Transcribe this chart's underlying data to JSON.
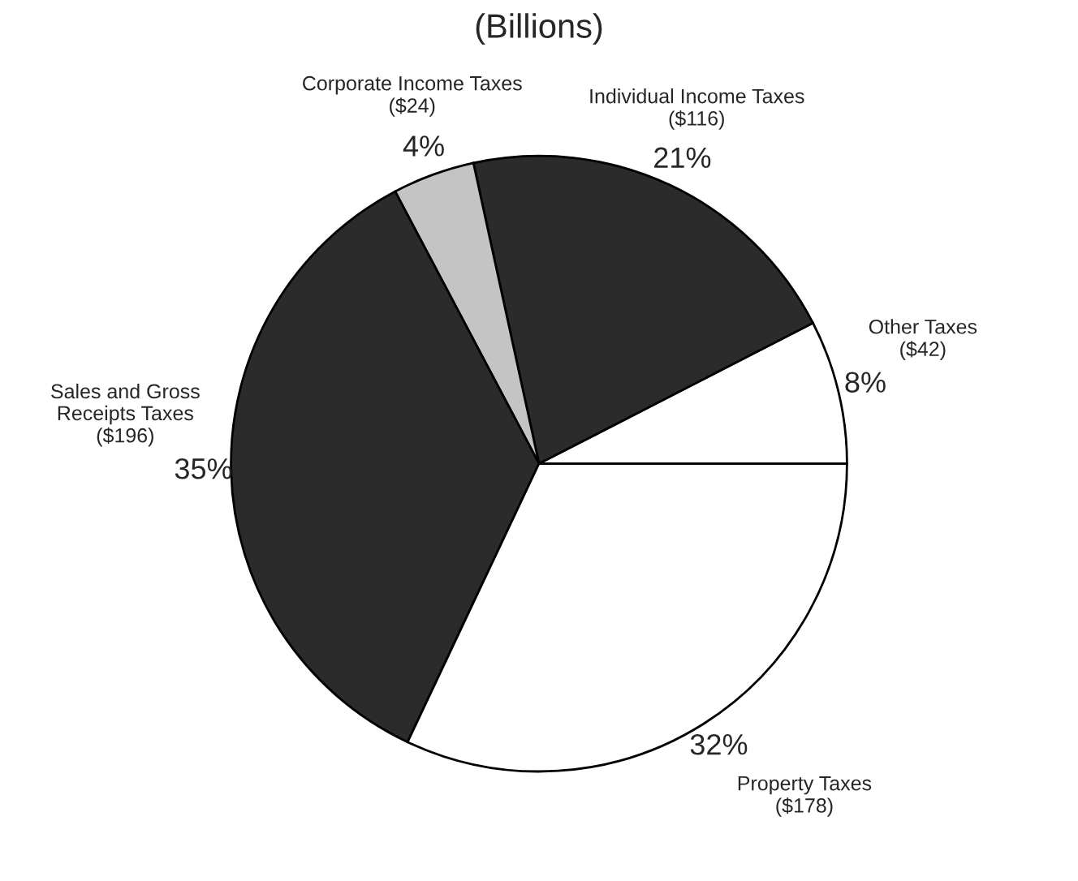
{
  "chart_data": {
    "type": "pie",
    "title": "(Billions)",
    "categories": [
      "Other Taxes",
      "Individual Income Taxes",
      "Corporate Income Taxes",
      "Sales and Gross\nReceipts Taxes",
      "Property Taxes"
    ],
    "values": [
      42,
      116,
      24,
      196,
      178
    ],
    "value_labels": [
      "($42)",
      "($116)",
      "($24)",
      "($196)",
      "($178)"
    ],
    "colors": [
      "#ffffff",
      "#2b2b2b",
      "#c4c4c4",
      "#2b2b2b",
      "#ffffff"
    ],
    "annotations": [
      {
        "text": "8%",
        "x": "Other Taxes"
      },
      {
        "text": "21%",
        "x": "Individual Income Taxes"
      },
      {
        "text": "4%",
        "x": "Corporate Income Taxes"
      },
      {
        "text": "35%",
        "x": "Sales and Gross\nReceipts Taxes"
      },
      {
        "text": "32%",
        "x": "Property Taxes"
      }
    ]
  }
}
